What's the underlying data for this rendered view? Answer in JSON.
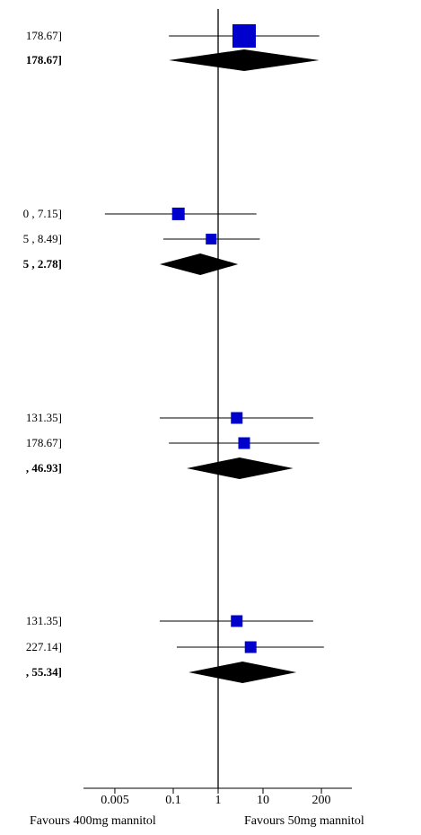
{
  "chart_data": {
    "type": "forest",
    "x_scale": "log",
    "xlim": [
      0.002,
      500
    ],
    "null_line": 1,
    "x_ticks": [
      {
        "value": 0.005,
        "label": "0.005"
      },
      {
        "value": 0.1,
        "label": "0.1"
      },
      {
        "value": 1,
        "label": "1"
      },
      {
        "value": 10,
        "label": "10"
      },
      {
        "value": 200,
        "label": "200"
      }
    ],
    "favours_left": "Favours 400mg mannitol",
    "favours_right": "Favours 50mg mannitol",
    "groups": [
      {
        "studies": [
          {
            "estimate": 3.8,
            "lo": 0.08,
            "hi": 178.67,
            "ci_text": "178.67]"
          }
        ],
        "summary": {
          "estimate": 3.8,
          "lo": 0.08,
          "hi": 178.67,
          "ci_text": "178.67]"
        }
      },
      {
        "studies": [
          {
            "estimate": 0.13,
            "lo": 0.003,
            "hi": 7.15,
            "ci_text": "0 , 7.15]"
          },
          {
            "estimate": 0.7,
            "lo": 0.06,
            "hi": 8.49,
            "ci_text": "5 , 8.49]"
          }
        ],
        "summary": {
          "estimate": 0.4,
          "lo": 0.05,
          "hi": 2.78,
          "ci_text": "5 , 2.78]"
        }
      },
      {
        "studies": [
          {
            "estimate": 2.6,
            "lo": 0.05,
            "hi": 131.35,
            "ci_text": "131.35]"
          },
          {
            "estimate": 3.8,
            "lo": 0.08,
            "hi": 178.67,
            "ci_text": "178.67]"
          }
        ],
        "summary": {
          "estimate": 3.0,
          "lo": 0.2,
          "hi": 46.93,
          "ci_text": ", 46.93]"
        }
      },
      {
        "studies": [
          {
            "estimate": 2.6,
            "lo": 0.05,
            "hi": 131.35,
            "ci_text": "131.35]"
          },
          {
            "estimate": 5.3,
            "lo": 0.12,
            "hi": 227.14,
            "ci_text": "227.14]"
          }
        ],
        "summary": {
          "estimate": 3.5,
          "lo": 0.22,
          "hi": 55.34,
          "ci_text": ", 55.34]"
        }
      }
    ]
  }
}
